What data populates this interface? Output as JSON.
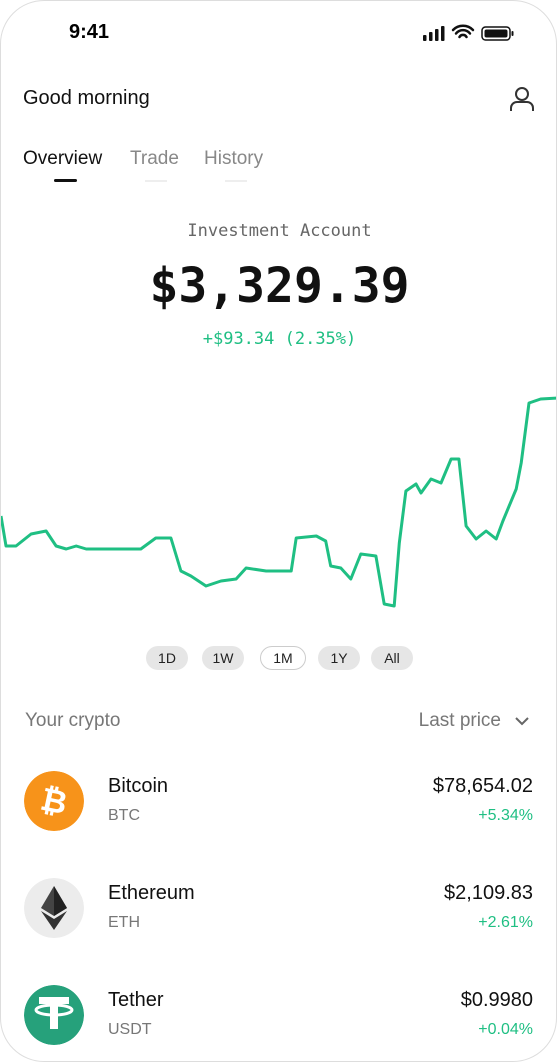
{
  "status_bar": {
    "time": "9:41"
  },
  "header": {
    "greeting": "Good morning"
  },
  "tabs": [
    "Overview",
    "Trade",
    "History"
  ],
  "account": {
    "label": "Investment Account",
    "balance": "$3,329.39",
    "change": "+$93.34 (2.35%)"
  },
  "chart": {
    "type": "line",
    "color": "#1fbf83",
    "xlim": [
      0,
      100
    ],
    "ylim": [
      0,
      240
    ],
    "x": [
      0,
      0.9,
      2.7,
      5.4,
      8.1,
      9.9,
      11.7,
      13.5,
      15.3,
      18,
      25.1,
      27.8,
      30.5,
      32.3,
      34.1,
      36.8,
      39.5,
      42.2,
      44,
      47.6,
      52.1,
      53,
      56.6,
      58.3,
      59.2,
      61,
      62.8,
      64.6,
      67.3,
      68.8,
      70.6,
      71.5,
      72.7,
      74.5,
      75.4,
      77.2,
      79,
      80.8,
      82.2,
      83.5,
      85.3,
      87.1,
      88.9,
      90.1,
      92.5,
      93.4,
      94.8,
      96.9,
      100
    ],
    "values": [
      105,
      75,
      75,
      87,
      90,
      75,
      72,
      75,
      72,
      72,
      72,
      83,
      83,
      50,
      45,
      35,
      40,
      42,
      53,
      50,
      50,
      83,
      85,
      80,
      55,
      53,
      42,
      67,
      65,
      17,
      15,
      78,
      130,
      137,
      128,
      142,
      138,
      162,
      162,
      95,
      82,
      90,
      82,
      100,
      132,
      158,
      218,
      222,
      223
    ]
  },
  "ranges": [
    "1D",
    "1W",
    "1M",
    "1Y",
    "All"
  ],
  "list_header": {
    "title": "Your crypto",
    "sort": "Last price"
  },
  "assets": [
    {
      "name": "Bitcoin",
      "ticker": "BTC",
      "price": "$78,654.02",
      "change": "+5.34%"
    },
    {
      "name": "Ethereum",
      "ticker": "ETH",
      "price": "$2,109.83",
      "change": "+2.61%"
    },
    {
      "name": "Tether",
      "ticker": "USDT",
      "price": "$0.9980",
      "change": "+0.04%"
    }
  ]
}
